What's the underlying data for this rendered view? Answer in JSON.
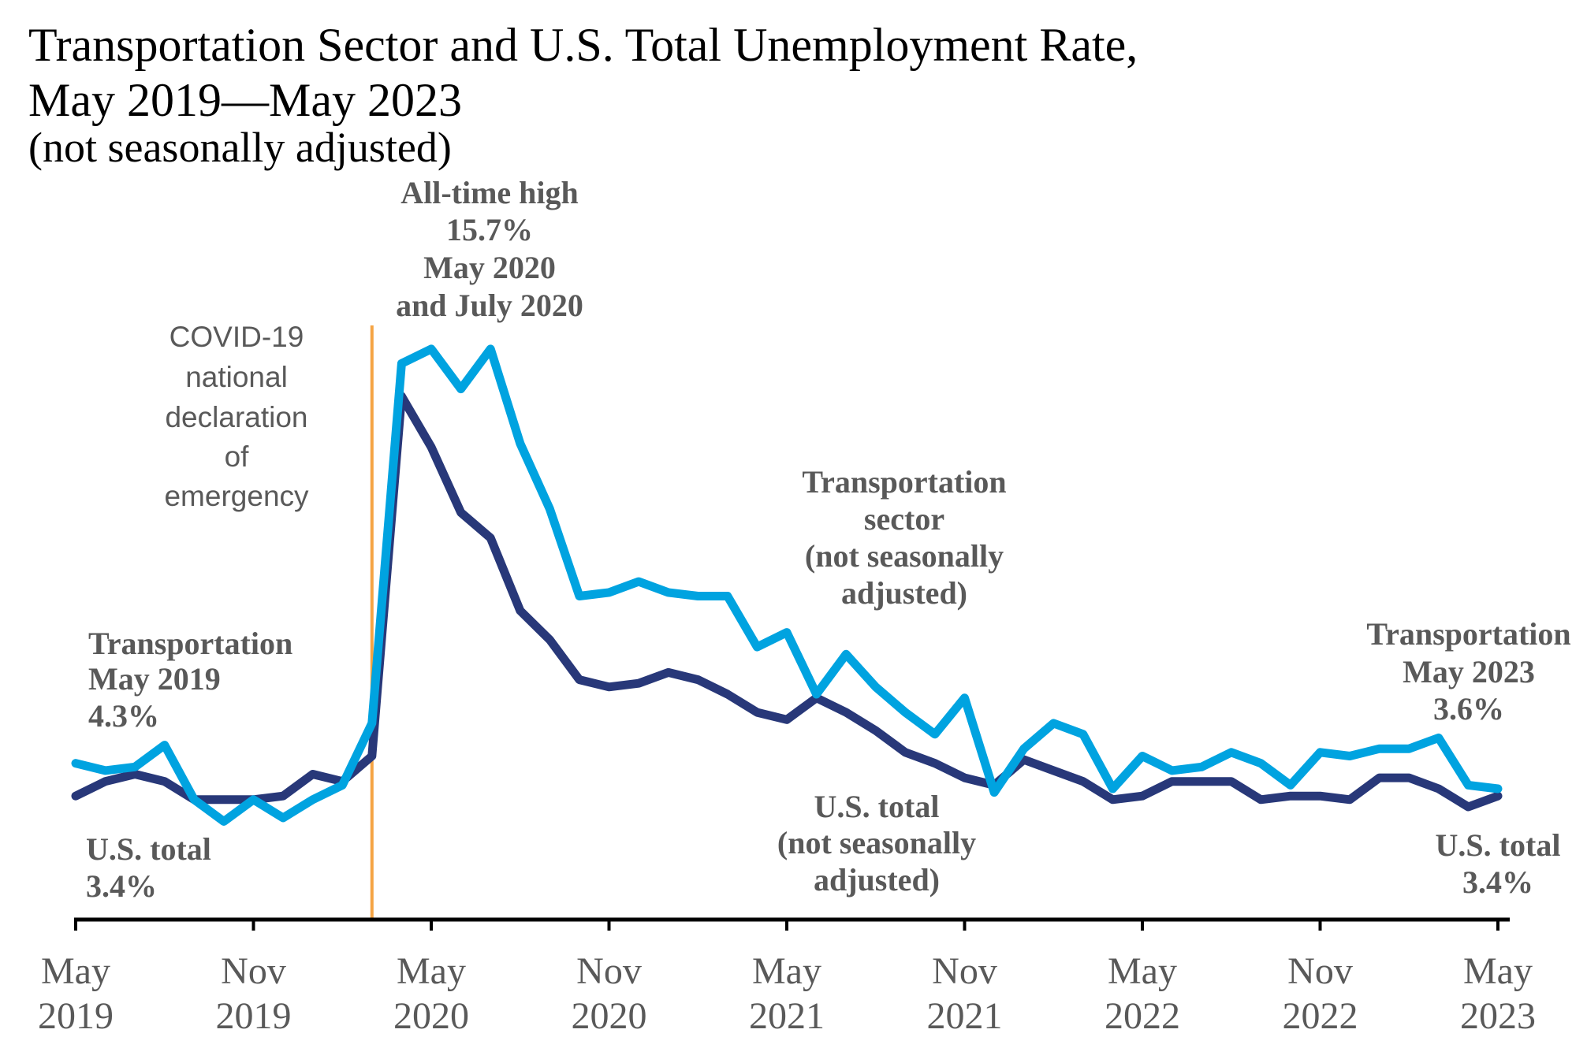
{
  "chart_data": {
    "type": "line",
    "title": [
      "Transportation Sector and U.S. Total Unemployment Rate,",
      "May 2019—May 2023"
    ],
    "subtitle": "(not seasonally adjusted)",
    "ylim": [
      0,
      16.5
    ],
    "grid": false,
    "ticks": [
      {
        "index": 0,
        "month": "May",
        "year": "2019"
      },
      {
        "index": 6,
        "month": "Nov",
        "year": "2019"
      },
      {
        "index": 12,
        "month": "May",
        "year": "2020"
      },
      {
        "index": 18,
        "month": "Nov",
        "year": "2020"
      },
      {
        "index": 24,
        "month": "May",
        "year": "2021"
      },
      {
        "index": 30,
        "month": "Nov",
        "year": "2021"
      },
      {
        "index": 36,
        "month": "May",
        "year": "2022"
      },
      {
        "index": 42,
        "month": "Nov",
        "year": "2022"
      },
      {
        "index": 48,
        "month": "May",
        "year": "2023"
      }
    ],
    "series": [
      {
        "color": "#00A3E0",
        "label": [
          "Transportation",
          "sector",
          "(not seasonally",
          "adjusted)"
        ],
        "values": [
          4.3,
          4.1,
          4.2,
          4.8,
          3.3,
          2.7,
          3.3,
          2.8,
          3.3,
          3.7,
          5.4,
          15.3,
          15.7,
          14.6,
          15.7,
          13.1,
          11.3,
          8.9,
          9.0,
          9.3,
          9.0,
          8.9,
          8.9,
          7.5,
          7.9,
          6.2,
          7.3,
          6.4,
          5.7,
          5.1,
          6.1,
          3.5,
          4.7,
          5.4,
          5.1,
          3.6,
          4.5,
          4.1,
          4.2,
          4.6,
          4.3,
          3.7,
          4.6,
          4.5,
          4.7,
          4.7,
          5.0,
          3.7,
          3.6
        ]
      },
      {
        "color": "#283879",
        "label": [
          "U.S. total",
          "(not seasonally",
          "adjusted)"
        ],
        "values": [
          3.4,
          3.8,
          4.0,
          3.8,
          3.3,
          3.3,
          3.3,
          3.4,
          4.0,
          3.8,
          4.5,
          14.4,
          13.0,
          11.2,
          10.5,
          8.5,
          7.7,
          6.6,
          6.4,
          6.5,
          6.8,
          6.6,
          6.2,
          5.7,
          5.5,
          6.1,
          5.7,
          5.2,
          4.6,
          4.3,
          3.9,
          3.7,
          4.4,
          4.1,
          3.8,
          3.3,
          3.4,
          3.8,
          3.8,
          3.8,
          3.3,
          3.4,
          3.4,
          3.3,
          3.9,
          3.9,
          3.6,
          3.1,
          3.4
        ]
      }
    ],
    "event": {
      "index": 10,
      "color": "#F5A444",
      "label": [
        "COVID-19",
        "national",
        "declaration",
        "of",
        "emergency"
      ]
    },
    "annotations": {
      "peak": [
        "All-time high",
        "15.7%",
        "May 2020",
        "and July 2020"
      ],
      "transportation_start": [
        "Transportation",
        "May 2019",
        "4.3%"
      ],
      "us_total_start": [
        "U.S. total",
        "3.4%"
      ],
      "transportation_end": [
        "Transportation",
        "May 2023",
        "3.6%"
      ],
      "us_total_end": [
        "U.S. total",
        "3.4%"
      ]
    }
  }
}
